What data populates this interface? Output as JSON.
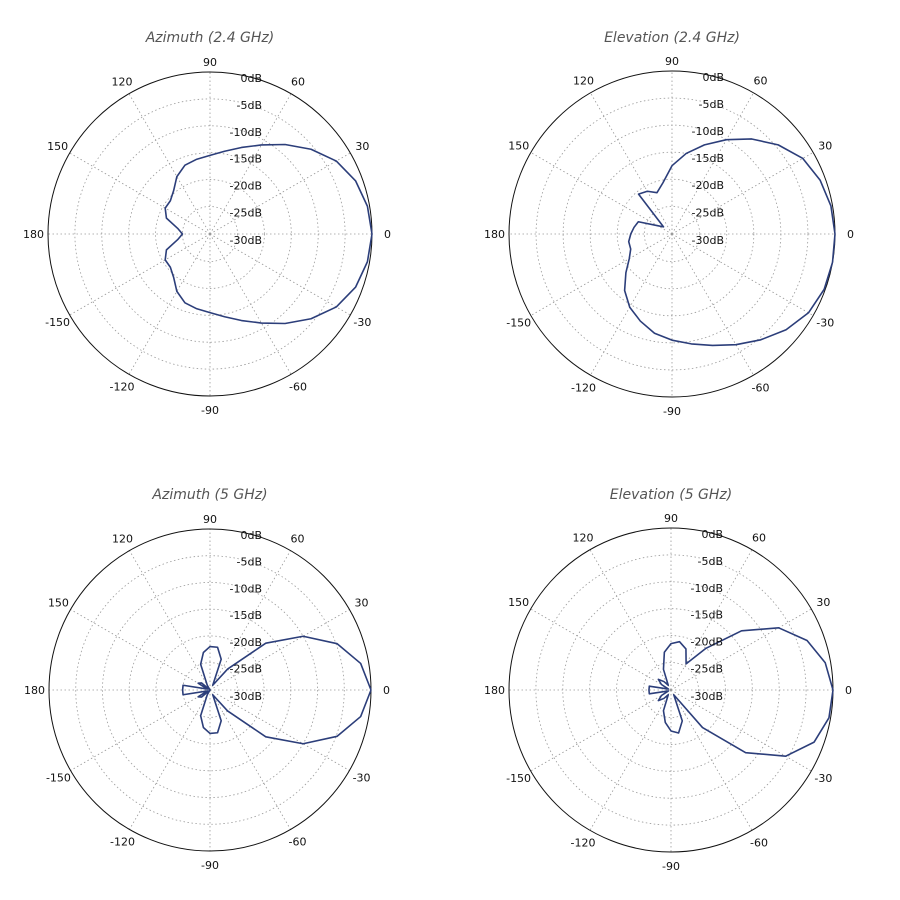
{
  "colors": {
    "pattern": "#2c3e7a",
    "grid": "#9a9a9a",
    "ring": "#111111",
    "title": "#555555"
  },
  "chart_data": [
    {
      "type": "polar",
      "title": "Azimuth (2.4 GHz)",
      "angle_unit": "deg",
      "r_unit": "dB",
      "r_range": [
        -30,
        0
      ],
      "r_ticks": [
        "0dB",
        "-5dB",
        "-10dB",
        "-15dB",
        "-20dB",
        "-25dB",
        "-30dB"
      ],
      "angle_ticks": [
        "0",
        "30",
        "60",
        "90",
        "120",
        "150",
        "180",
        "-150",
        "-120",
        "-90",
        "-60",
        "-30"
      ],
      "grid": true,
      "series": [
        {
          "angles": [
            0,
            10,
            20,
            30,
            40,
            50,
            60,
            70,
            80,
            90,
            100,
            110,
            120,
            130,
            140,
            150,
            160,
            170,
            180,
            190,
            200,
            210,
            220,
            230,
            240,
            250,
            260,
            270,
            280,
            290,
            300,
            310,
            320,
            330,
            340,
            350
          ],
          "values": [
            0,
            -0.4,
            -1.3,
            -3,
            -5.6,
            -8.4,
            -11,
            -13,
            -14.5,
            -15.5,
            -16,
            -16.5,
            -17.8,
            -19.6,
            -20.5,
            -20.5,
            -21.5,
            -24,
            -25,
            -24,
            -21.5,
            -20.5,
            -20.5,
            -19.6,
            -17.8,
            -16.5,
            -16,
            -15.5,
            -14.5,
            -13,
            -11,
            -8.4,
            -5.6,
            -3,
            -1.3,
            -0.4
          ]
        }
      ]
    },
    {
      "type": "polar",
      "title": "Elevation (2.4 GHz)",
      "angle_unit": "deg",
      "r_unit": "dB",
      "r_range": [
        -30,
        0
      ],
      "r_ticks": [
        "0dB",
        "-5dB",
        "-10dB",
        "-15dB",
        "-20dB",
        "-25dB",
        "-30dB"
      ],
      "angle_ticks": [
        "0",
        "30",
        "60",
        "90",
        "120",
        "150",
        "180",
        "-150",
        "-120",
        "-90",
        "-60",
        "-30"
      ],
      "grid": true,
      "series": [
        {
          "angles": [
            0,
            10,
            20,
            30,
            40,
            50,
            60,
            70,
            80,
            90,
            100,
            110,
            120,
            130,
            140,
            150,
            160,
            170,
            180,
            190,
            200,
            210,
            220,
            230,
            240,
            250,
            260,
            270,
            280,
            290,
            300,
            310,
            320,
            330,
            340,
            350
          ],
          "values": [
            0,
            -0.3,
            -1,
            -2.2,
            -4.5,
            -7.2,
            -10,
            -12.6,
            -15,
            -17.5,
            -20.5,
            -22,
            -21,
            -20.5,
            -28,
            -27,
            -23.5,
            -23,
            -22.5,
            -22,
            -22,
            -21,
            -19,
            -16.5,
            -14.5,
            -13,
            -11.5,
            -10.5,
            -9.5,
            -8.2,
            -6.5,
            -4.6,
            -2.6,
            -1,
            -0.2,
            0
          ]
        }
      ]
    },
    {
      "type": "polar",
      "title": "Azimuth (5 GHz)",
      "angle_unit": "deg",
      "r_unit": "dB",
      "r_range": [
        -30,
        0
      ],
      "r_ticks": [
        "0dB",
        "-5dB",
        "-10dB",
        "-15dB",
        "-20dB",
        "-25dB",
        "-30dB"
      ],
      "angle_ticks": [
        "0",
        "30",
        "60",
        "90",
        "120",
        "150",
        "180",
        "-150",
        "-120",
        "-90",
        "-60",
        "-30"
      ],
      "grid": true,
      "series": [
        {
          "angles": [
            0,
            10,
            20,
            30,
            40,
            50,
            60,
            70,
            80,
            90,
            100,
            110,
            120,
            130,
            140,
            150,
            160,
            170,
            180,
            190,
            200,
            210,
            220,
            230,
            240,
            250,
            260,
            270,
            280,
            290,
            300,
            310,
            320,
            330,
            340,
            350
          ],
          "values": [
            0,
            -1.5,
            -4.8,
            -10,
            -16.5,
            -25,
            -29,
            -24,
            -22,
            -22,
            -23,
            -25,
            -29,
            -30,
            -28,
            -27.5,
            -29.5,
            -25,
            -25,
            -25,
            -29.5,
            -27.5,
            -28,
            -30,
            -29,
            -25,
            -23,
            -22,
            -22,
            -24,
            -29,
            -25,
            -16.5,
            -10,
            -4.8,
            -1.5
          ]
        }
      ]
    },
    {
      "type": "polar",
      "title": "Elevation (5 GHz)",
      "angle_unit": "deg",
      "r_unit": "dB",
      "r_range": [
        -30,
        0
      ],
      "r_ticks": [
        "0dB",
        "-5dB",
        "-10dB",
        "-15dB",
        "-20dB",
        "-25dB",
        "-30dB"
      ],
      "angle_ticks": [
        "0",
        "30",
        "60",
        "90",
        "120",
        "150",
        "180",
        "-150",
        "-120",
        "-90",
        "-60",
        "-30"
      ],
      "grid": true,
      "series": [
        {
          "angles": [
            0,
            10,
            20,
            30,
            40,
            50,
            60,
            70,
            80,
            90,
            100,
            110,
            120,
            130,
            140,
            150,
            160,
            170,
            180,
            190,
            200,
            210,
            220,
            230,
            240,
            250,
            260,
            270,
            280,
            290,
            300,
            310,
            320,
            330,
            340,
            350
          ],
          "values": [
            0,
            -1,
            -3.2,
            -7,
            -13,
            -20,
            -24.5,
            -22,
            -21,
            -21.5,
            -23,
            -26,
            -29,
            -28,
            -27,
            -28,
            -29.5,
            -26,
            -26,
            -26,
            -29.5,
            -28,
            -27,
            -28,
            -29,
            -26,
            -24,
            -22.5,
            -22,
            -24,
            -29,
            -21,
            -12,
            -5.5,
            -1.8,
            -0.3
          ]
        }
      ]
    }
  ]
}
